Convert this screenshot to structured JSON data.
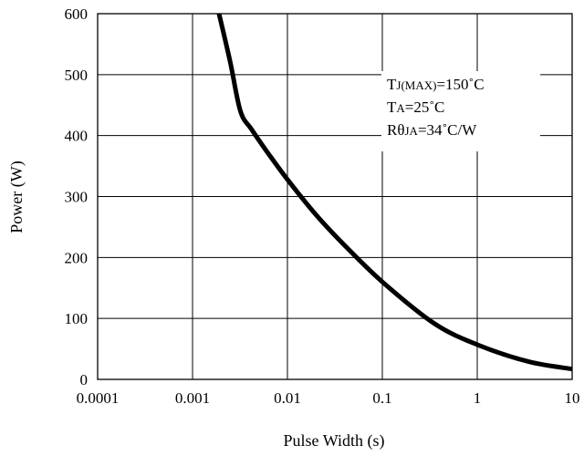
{
  "chart_data": {
    "type": "line",
    "title": "",
    "xlabel": "Pulse Width (s)",
    "ylabel": "Power (W)",
    "xscale": "log",
    "xlim": [
      0.0001,
      10
    ],
    "ylim": [
      0,
      600
    ],
    "grid": true,
    "x_ticks": [
      "0.0001",
      "0.001",
      "0.01",
      "0.1",
      "1",
      "10"
    ],
    "y_ticks": [
      "0",
      "100",
      "200",
      "300",
      "400",
      "500",
      "600"
    ],
    "series": [
      {
        "color": "#000000",
        "x": [
          0.0019,
          0.0025,
          0.0032,
          0.0042,
          0.006,
          0.01,
          0.02,
          0.04,
          0.1,
          0.35,
          1,
          3.5,
          10
        ],
        "y": [
          600,
          520,
          440,
          410,
          375,
          328,
          270,
          220,
          160,
          92,
          57,
          29,
          17
        ]
      }
    ],
    "annotations": [
      {
        "main": "T",
        "sub": "J(MAX)",
        "rest": "=150˚C"
      },
      {
        "main": "T",
        "sub": "A",
        "rest": "=25˚C"
      },
      {
        "main": "Rθ",
        "sub": "JA",
        "rest": "=34˚C/W"
      }
    ]
  }
}
